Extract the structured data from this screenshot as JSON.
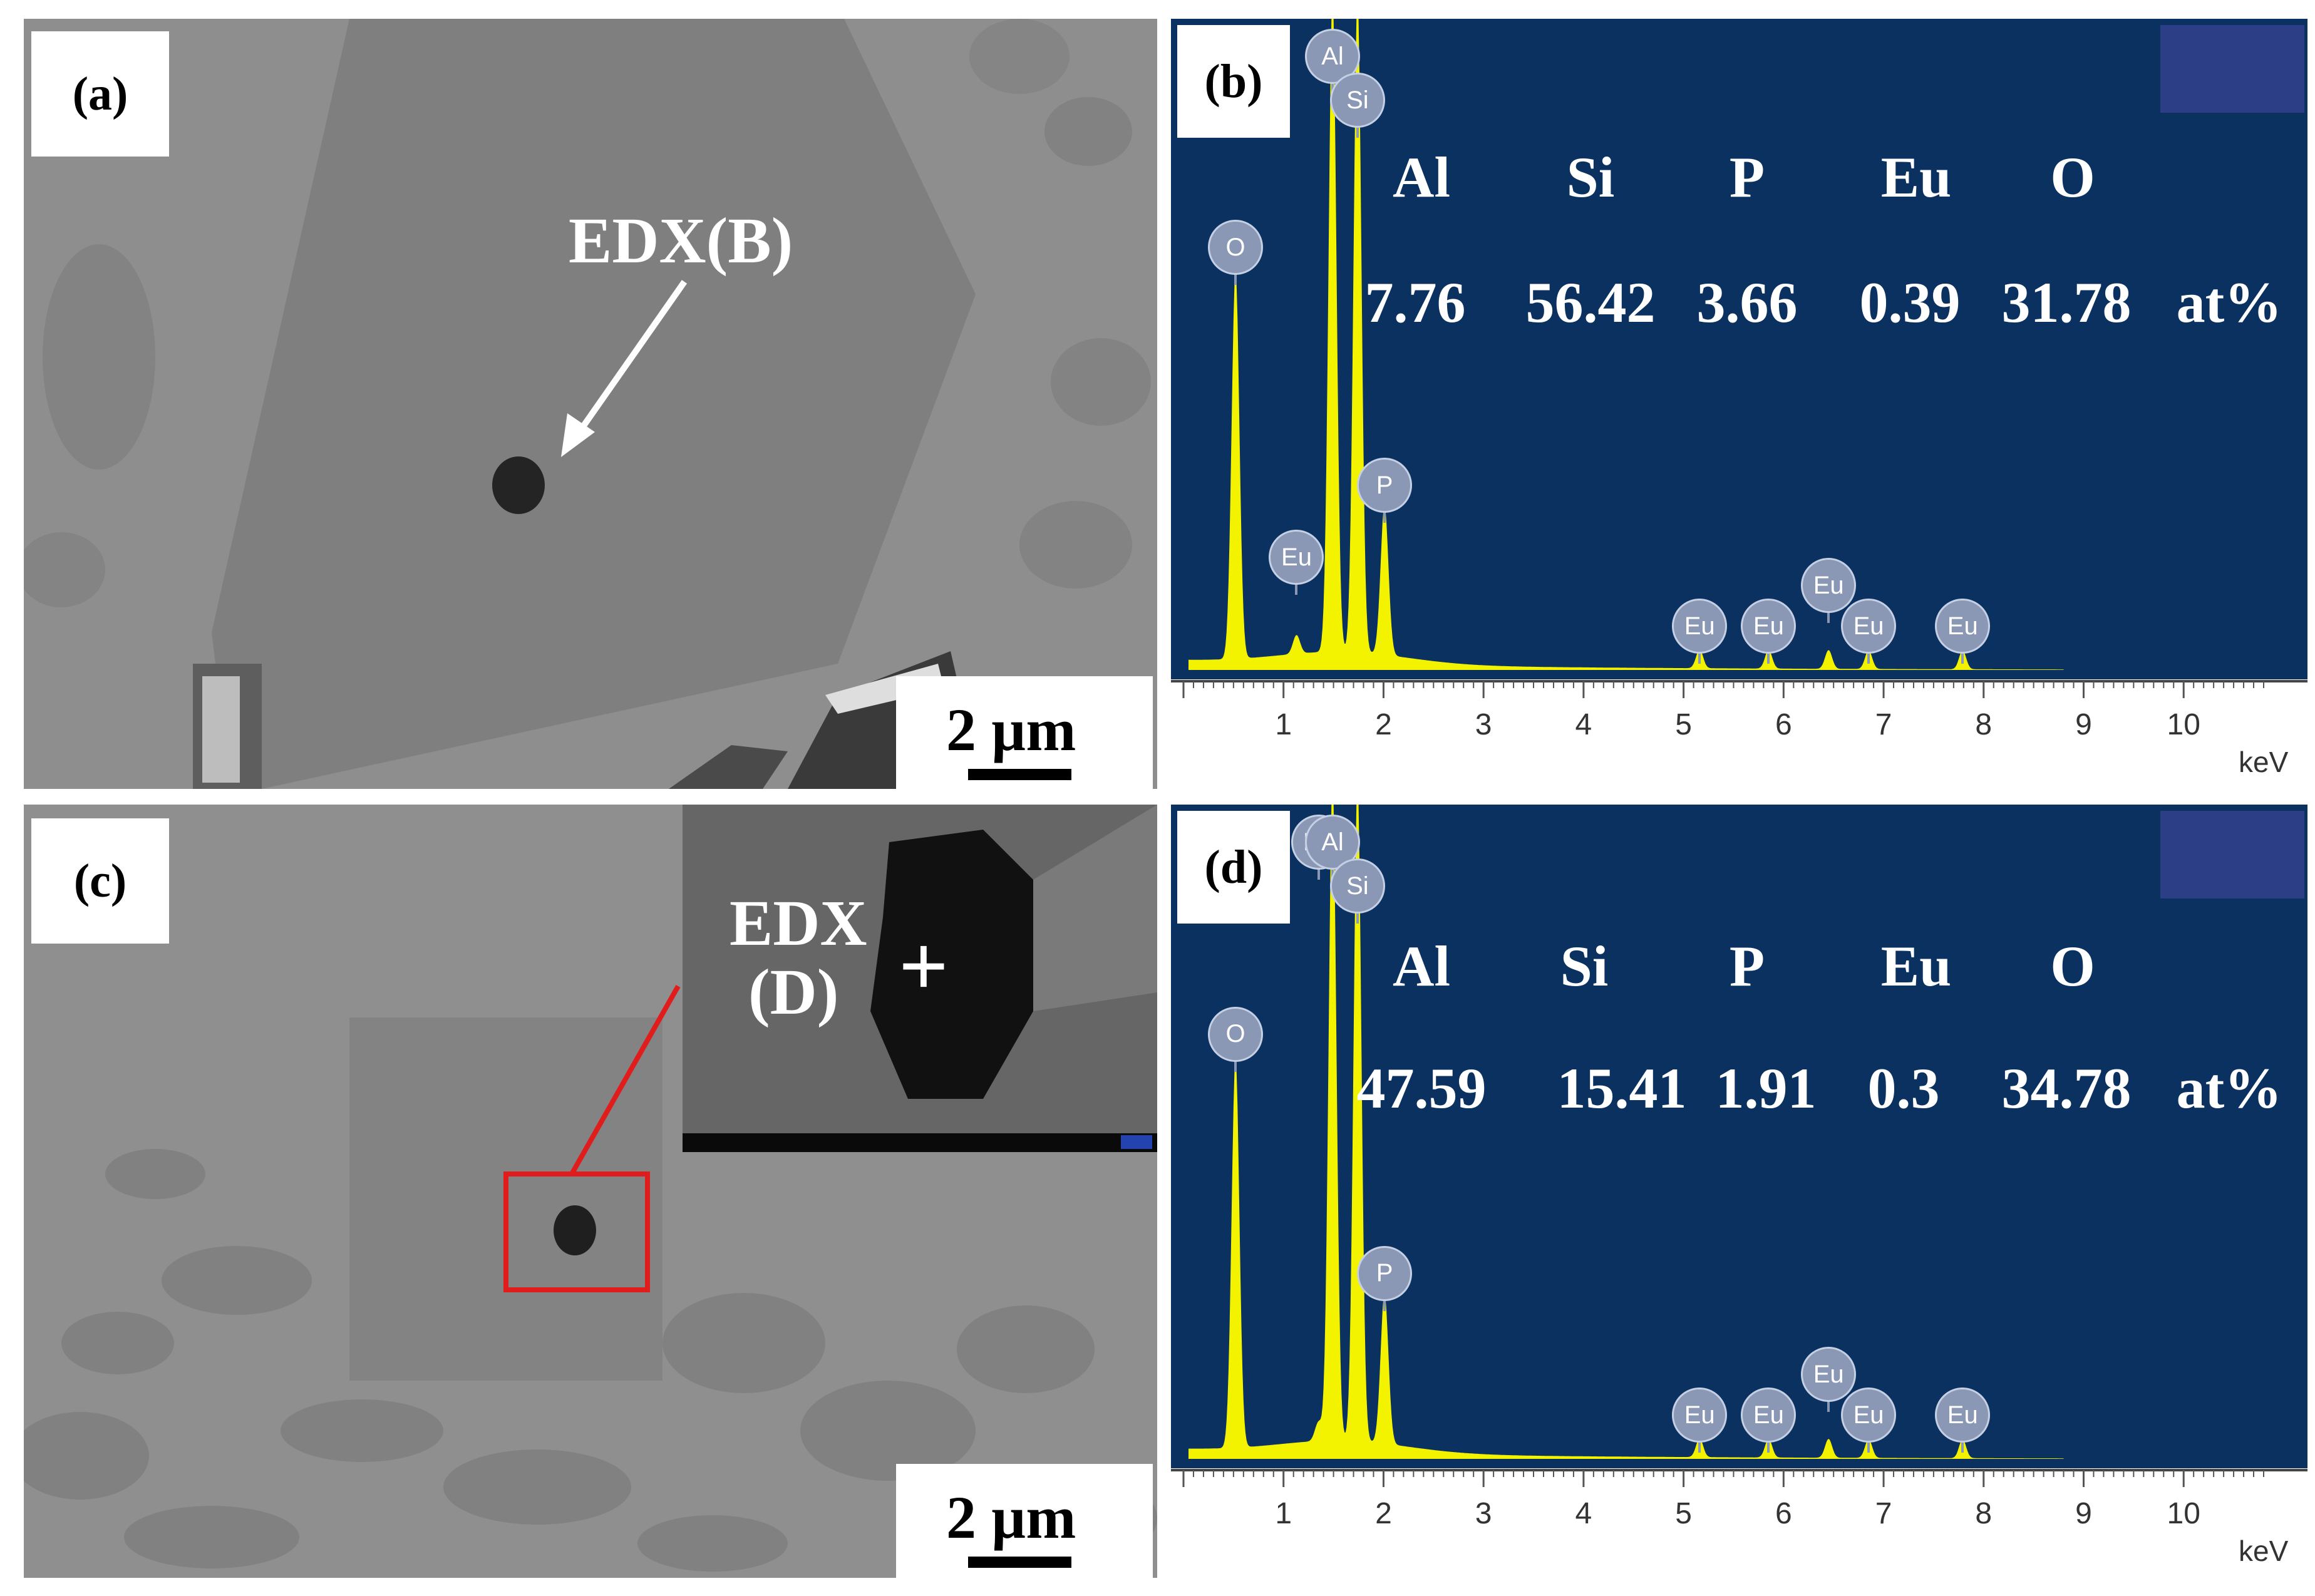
{
  "panels": {
    "a": {
      "label": "(a)",
      "scale": "2 µm",
      "pointer": "EDX(B)"
    },
    "b": {
      "label": "(b)"
    },
    "c": {
      "label": "(c)",
      "scale": "2 µm",
      "inset_label_line1": "EDX",
      "inset_label_line2": "(D)",
      "inset_marker": "+"
    },
    "d": {
      "label": "(d)"
    }
  },
  "spectrum_colors": {
    "background": "#0b3160",
    "signal": "#f3f300"
  },
  "icons": {
    "crosshair": "plus-icon",
    "arrow": "arrow-icon"
  },
  "chart_data": [
    {
      "type": "table",
      "panel": "b",
      "columns": [
        "Al",
        "Si",
        "P",
        "Eu",
        "O"
      ],
      "values": [
        "7.76",
        "56.42",
        "3.66",
        "0.39",
        "31.78"
      ],
      "unit": "at%",
      "x_unit": "keV",
      "x_ticks": [
        "1",
        "2",
        "3",
        "4",
        "5",
        "6",
        "7",
        "8",
        "9",
        "10"
      ],
      "xlim": [
        0,
        10.8
      ],
      "peaks": [
        {
          "element": "O",
          "kev": 0.52
        },
        {
          "element": "Eu",
          "kev": 1.13
        },
        {
          "element": "Al",
          "kev": 1.49
        },
        {
          "element": "Si",
          "kev": 1.74
        },
        {
          "element": "P",
          "kev": 2.01
        },
        {
          "element": "Eu",
          "kev": 5.16
        },
        {
          "element": "Eu",
          "kev": 5.85
        },
        {
          "element": "Eu",
          "kev": 6.45
        },
        {
          "element": "Eu",
          "kev": 6.85
        },
        {
          "element": "Eu",
          "kev": 7.79
        }
      ]
    },
    {
      "type": "table",
      "panel": "d",
      "columns": [
        "Al",
        "Si",
        "P",
        "Eu",
        "O"
      ],
      "values": [
        "47.59",
        "15.41",
        "1.91",
        "0.3",
        "34.78"
      ],
      "unit": "at%",
      "x_unit": "keV",
      "x_ticks": [
        "1",
        "2",
        "3",
        "4",
        "5",
        "6",
        "7",
        "8",
        "9",
        "10"
      ],
      "xlim": [
        0,
        10.8
      ],
      "peaks": [
        {
          "element": "O",
          "kev": 0.52
        },
        {
          "element": "Eu",
          "kev": 1.35
        },
        {
          "element": "Al",
          "kev": 1.49
        },
        {
          "element": "Si",
          "kev": 1.74
        },
        {
          "element": "P",
          "kev": 2.01
        },
        {
          "element": "Eu",
          "kev": 5.16
        },
        {
          "element": "Eu",
          "kev": 5.85
        },
        {
          "element": "Eu",
          "kev": 6.45
        },
        {
          "element": "Eu",
          "kev": 6.85
        },
        {
          "element": "Eu",
          "kev": 7.79
        }
      ]
    }
  ]
}
